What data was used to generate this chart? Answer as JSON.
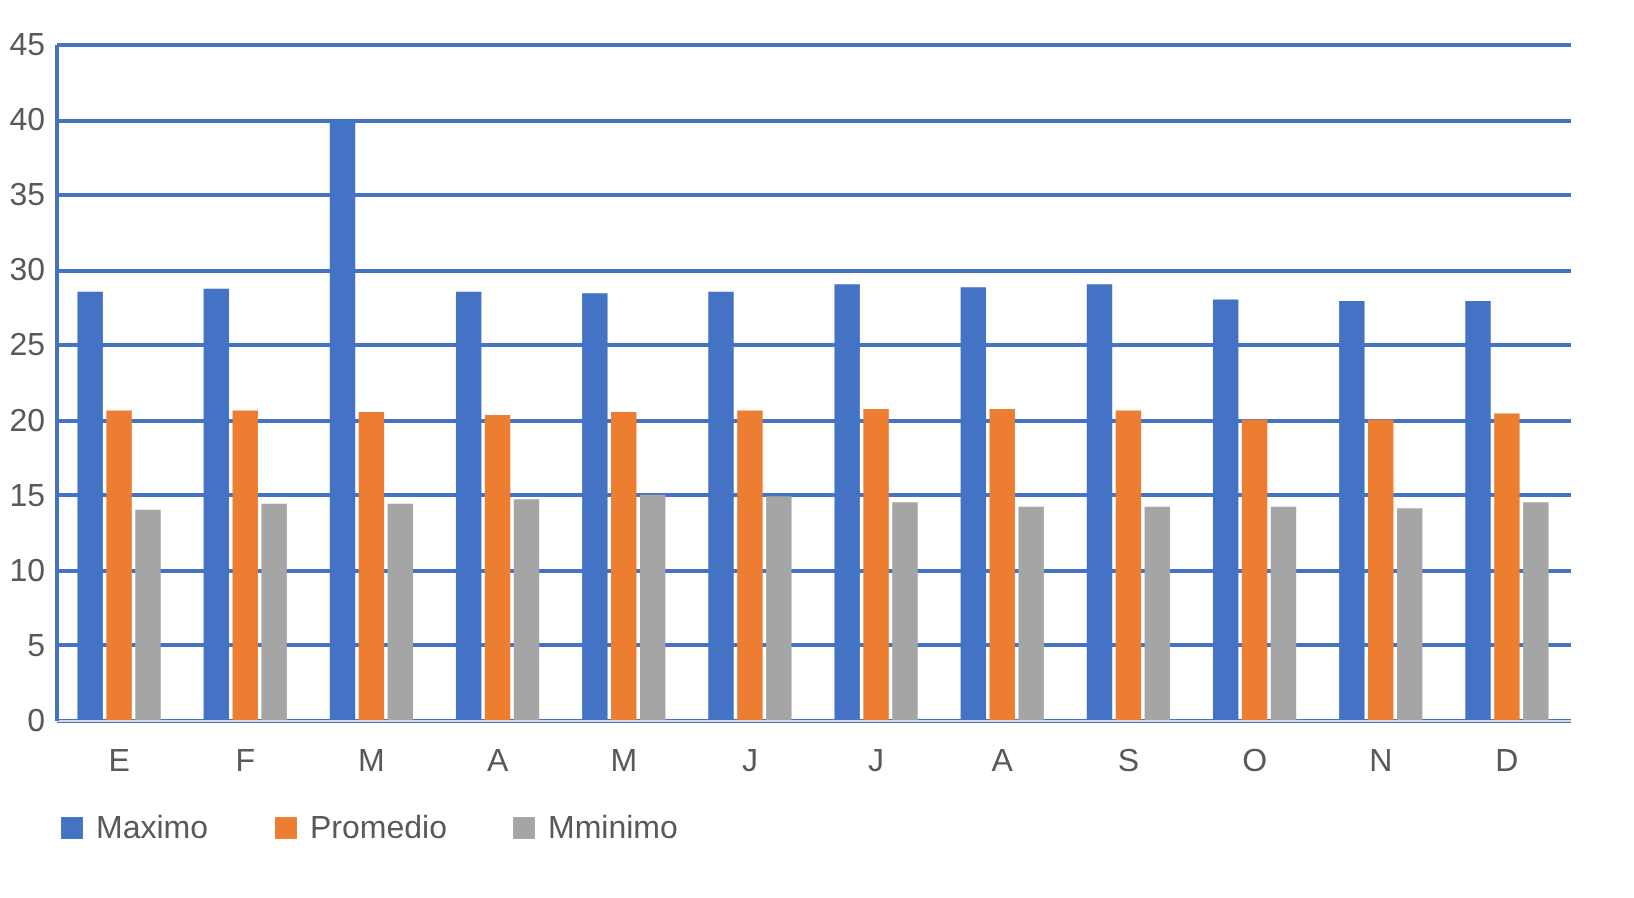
{
  "chart_data": {
    "type": "bar",
    "categories": [
      "E",
      "F",
      "M",
      "A",
      "M",
      "J",
      "J",
      "A",
      "S",
      "O",
      "N",
      "D"
    ],
    "series": [
      {
        "name": "Maximo",
        "color": "#4472c4",
        "values": [
          28.5,
          28.7,
          39.8,
          28.5,
          28.4,
          28.5,
          29.0,
          28.8,
          29.0,
          28.0,
          27.9,
          27.9
        ]
      },
      {
        "name": "Promedio",
        "color": "#ed7d31",
        "values": [
          20.6,
          20.6,
          20.5,
          20.3,
          20.5,
          20.6,
          20.7,
          20.7,
          20.6,
          20.0,
          20.0,
          20.4
        ]
      },
      {
        "name": "Mminimo",
        "color": "#a5a5a5",
        "values": [
          14.0,
          14.4,
          14.4,
          14.7,
          15.0,
          14.9,
          14.5,
          14.2,
          14.2,
          14.2,
          14.1,
          14.5
        ]
      }
    ],
    "ylim": [
      0,
      45
    ],
    "yticks": [
      0,
      5,
      10,
      15,
      20,
      25,
      30,
      35,
      40,
      45
    ],
    "grid": true,
    "legend": "bottom"
  }
}
